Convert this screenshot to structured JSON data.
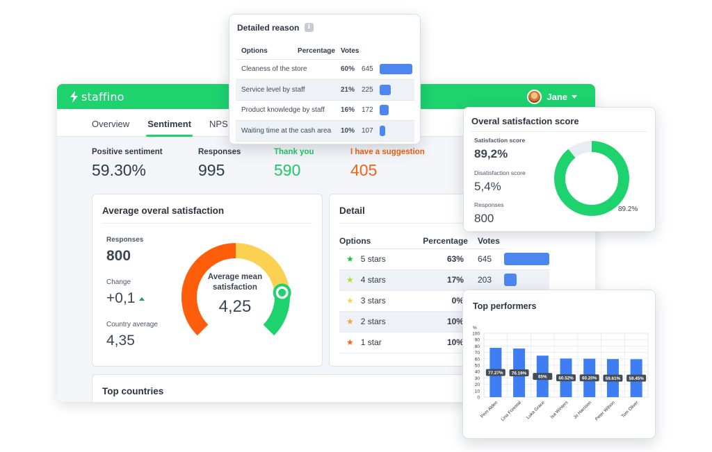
{
  "brand": {
    "name": "staffino",
    "accent": "#1ed26e"
  },
  "user": {
    "name": "Jane"
  },
  "tabs": [
    "Overview",
    "Sentiment",
    "NPS"
  ],
  "active_tab": "Sentiment",
  "stats": [
    {
      "label": "Positive sentiment",
      "value": "59.30%",
      "color": "#2f3a48"
    },
    {
      "label": "Responses",
      "value": "995",
      "color": "#2f3a48"
    },
    {
      "label": "Thank you",
      "value": "590",
      "color": "#1ec86a"
    },
    {
      "label": "I have a suggestion",
      "value": "405",
      "color": "#f06414"
    }
  ],
  "satisfaction": {
    "title": "Average overal satisfaction",
    "responses_label": "Responses",
    "responses_value": "800",
    "change_label": "Change",
    "change_value": "+0,1",
    "country_label": "Country average",
    "country_value": "4,35",
    "gauge_label": "Average mean satisfaction",
    "gauge_value": "4,25",
    "gauge_score": 4.25,
    "gauge_colors": [
      "#fe5e0c",
      "#fcd152",
      "#1ed26e"
    ]
  },
  "detail": {
    "title": "Detail",
    "headers": [
      "Options",
      "Percentage",
      "Votes"
    ],
    "rows": [
      {
        "label": "5 stars",
        "percent": "63%",
        "votes": "645",
        "share": 0.63,
        "star_color": "#1dbf3e"
      },
      {
        "label": "4 stars",
        "percent": "17%",
        "votes": "203",
        "share": 0.17,
        "star_color": "#a6e22e"
      },
      {
        "label": "3 stars",
        "percent": "0%",
        "votes": "",
        "share": 0,
        "star_color": "#fcd152"
      },
      {
        "label": "2 stars",
        "percent": "10%",
        "votes": "",
        "share": 0.1,
        "star_color": "#fba03a"
      },
      {
        "label": "1 star",
        "percent": "10%",
        "votes": "",
        "share": 0.1,
        "star_color": "#f4661c"
      }
    ]
  },
  "countries": {
    "title": "Top countries"
  },
  "reason": {
    "title": "Detailed reason",
    "headers": [
      "Options",
      "Percentage",
      "Votes"
    ],
    "rows": [
      {
        "label": "Cleaness of the store",
        "percent": "60%",
        "votes": "645",
        "share": 0.6
      },
      {
        "label": "Service level by staff",
        "percent": "21%",
        "votes": "225",
        "share": 0.21
      },
      {
        "label": "Product knowledge by staff",
        "percent": "16%",
        "votes": "172",
        "share": 0.16
      },
      {
        "label": "Waiting time at the cash area",
        "percent": "10%",
        "votes": "107",
        "share": 0.1
      }
    ]
  },
  "overal": {
    "title": "Overal satisfaction score",
    "sat_label": "Satisfaction score",
    "sat_value": "89,2%",
    "dis_label": "Disatisfaction score",
    "dis_value": "5,4%",
    "resp_label": "Responses",
    "resp_value": "800",
    "donut_label": "89.2%",
    "donut_share": 0.892
  },
  "performers": {
    "title": "Top performers"
  },
  "chart_data": {
    "type": "bar",
    "title": "Top performers",
    "ylabel": "%",
    "xlabel": "",
    "ylim": [
      0,
      100
    ],
    "yticks": [
      0,
      10,
      20,
      30,
      40,
      50,
      60,
      70,
      80,
      90,
      100
    ],
    "grid": true,
    "categories": [
      "Pem Alden",
      "Lina Forestal",
      "Luka Grace",
      "Isa Winters",
      "Jo Harrison",
      "Peter Wilson",
      "Tom Oliver"
    ],
    "values": [
      77.27,
      76.19,
      65,
      60.52,
      60.2,
      59.61,
      59.45
    ],
    "labels": [
      "77.27%",
      "76.19%",
      "65%",
      "60.52%",
      "60.20%",
      "59.61%",
      "59.45%"
    ],
    "bar_color": "#3e7ef2"
  }
}
